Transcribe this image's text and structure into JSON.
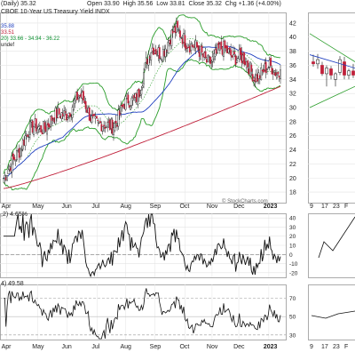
{
  "chart_data": {
    "type": "candlestick",
    "symbol_title": "CBOE 10-Year US Treasury Yield INDX",
    "period_label": "(Daily) 35.32",
    "ohlc": {
      "open_label": "Open",
      "open": "33.90",
      "high_label": "High",
      "high": "35.56",
      "low_label": "Low",
      "low": "33.81",
      "close_label": "Close",
      "close": "35.32",
      "chg_label": "Chg",
      "chg": "+1.36 (+4.00%)"
    },
    "legend_lines": [
      "35.88",
      "33.51",
      "20) 33.66 - 34.94 - 36.22",
      "undef"
    ],
    "watermark": "© StockCharts.com",
    "y_ticks": [
      18,
      20,
      22,
      24,
      26,
      28,
      30,
      32,
      34,
      36,
      38,
      40,
      42
    ],
    "ylim": [
      16.5,
      43.5
    ],
    "x_labels": [
      {
        "label": "Apr",
        "bold": false,
        "pos": 0.027
      },
      {
        "label": "May",
        "bold": false,
        "pos": 0.15
      },
      {
        "label": "Jun",
        "bold": false,
        "pos": 0.268
      },
      {
        "label": "Jul",
        "bold": false,
        "pos": 0.388
      },
      {
        "label": "Aug",
        "bold": false,
        "pos": 0.502
      },
      {
        "label": "Sep",
        "bold": false,
        "pos": 0.62
      },
      {
        "label": "Oct",
        "bold": false,
        "pos": 0.74
      },
      {
        "label": "Nov",
        "bold": false,
        "pos": 0.848
      },
      {
        "label": "Dec",
        "bold": false,
        "pos": 0.955
      },
      {
        "label": "2023",
        "bold": true,
        "pos": 1.075
      },
      {
        "label": "Feb",
        "bold": false,
        "pos": 1.165
      }
    ],
    "close_series_monthly": [
      {
        "month": "Mar",
        "value": 20
      },
      {
        "month": "Apr",
        "value": 26.5
      },
      {
        "month": "May",
        "value": 28.3
      },
      {
        "month": "Jun",
        "value": 31.0
      },
      {
        "month": "Jul",
        "value": 27.0
      },
      {
        "month": "Aug",
        "value": 30.5
      },
      {
        "month": "Sep",
        "value": 38.0
      },
      {
        "month": "Oct",
        "value": 40.5
      },
      {
        "month": "Nov",
        "value": 37.0
      },
      {
        "month": "Dec",
        "value": 38.0
      },
      {
        "month": "Jan",
        "value": 35.0
      },
      {
        "month": "Feb",
        "value": 35.32
      }
    ],
    "indicator1": {
      "label": ",2) 4.65%",
      "y_ticks": [
        -20,
        -10,
        0,
        10,
        20,
        30,
        40
      ],
      "ylim": [
        -25,
        45
      ]
    },
    "indicator2": {
      "label": "4) 49.58",
      "y_ticks": [
        30,
        50,
        70
      ],
      "ylim": [
        25,
        85
      ]
    },
    "inset": {
      "x_labels": [
        "9",
        "17",
        "23",
        "F"
      ],
      "candles": [
        {
          "o": 36.5,
          "h": 37.5,
          "l": 35.8,
          "c": 36.2
        },
        {
          "o": 36.2,
          "h": 37.6,
          "l": 35.5,
          "c": 36.8
        },
        {
          "o": 36.0,
          "h": 36.5,
          "l": 34.5,
          "c": 34.8
        },
        {
          "o": 34.8,
          "h": 36.0,
          "l": 33.0,
          "c": 35.6
        },
        {
          "o": 35.5,
          "h": 35.9,
          "l": 34.0,
          "c": 34.6
        },
        {
          "o": 34.0,
          "h": 35.0,
          "l": 33.0,
          "c": 34.8
        },
        {
          "o": 35.0,
          "h": 37.3,
          "l": 34.6,
          "c": 36.8
        },
        {
          "o": 36.5,
          "h": 37.2,
          "l": 34.0,
          "c": 34.6
        },
        {
          "o": 34.6,
          "h": 35.5,
          "l": 34.0,
          "c": 35.2
        },
        {
          "o": 35.2,
          "h": 36.2,
          "l": 34.2,
          "c": 34.6
        }
      ]
    }
  }
}
